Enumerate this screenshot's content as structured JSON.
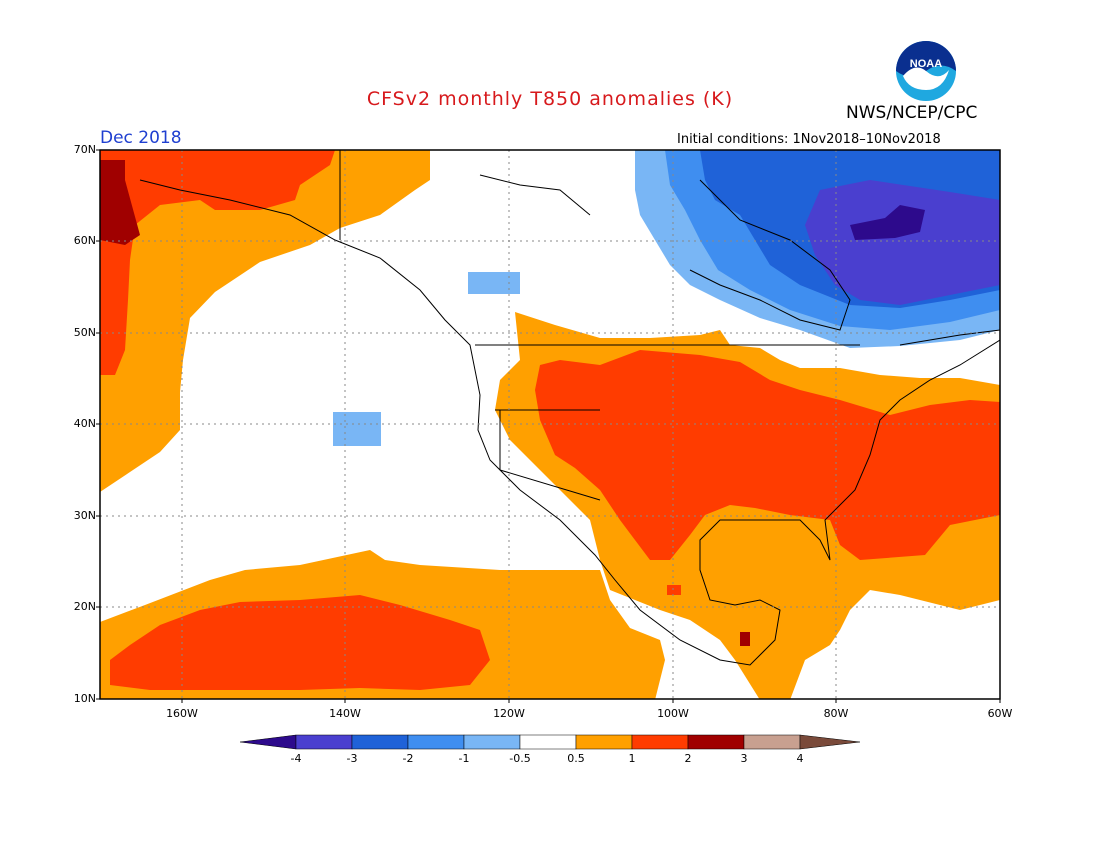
{
  "title": "CFSv2 monthly T850 anomalies (K)",
  "agency": "NWS/NCEP/CPC",
  "month": "Dec 2018",
  "initial_conditions": "Initial conditions: 1Nov2018–10Nov2018",
  "logo_text": "NOAA",
  "colors": {
    "title": "#d7191c",
    "month": "#1f3fd0",
    "neg4": "#2d0a8c",
    "neg3": "#4a3fcf",
    "neg2": "#1f62d8",
    "neg1": "#3f8ef0",
    "neg05": "#79b6f5",
    "neutral": "#ffffff",
    "pos05": "#ffa000",
    "pos1": "#ff3c00",
    "pos2": "#a00000",
    "pos3": "#c8a090",
    "pos4": "#7a4a3a"
  },
  "map": {
    "lat_labels": [
      "70N",
      "60N",
      "50N",
      "40N",
      "30N",
      "20N",
      "10N"
    ],
    "lon_labels": [
      "160W",
      "140W",
      "120W",
      "100W",
      "80W",
      "60W"
    ]
  },
  "colorbar": {
    "labels": [
      "-4",
      "-3",
      "-2",
      "-1",
      "-0.5",
      "0.5",
      "1",
      "2",
      "3",
      "4"
    ]
  }
}
